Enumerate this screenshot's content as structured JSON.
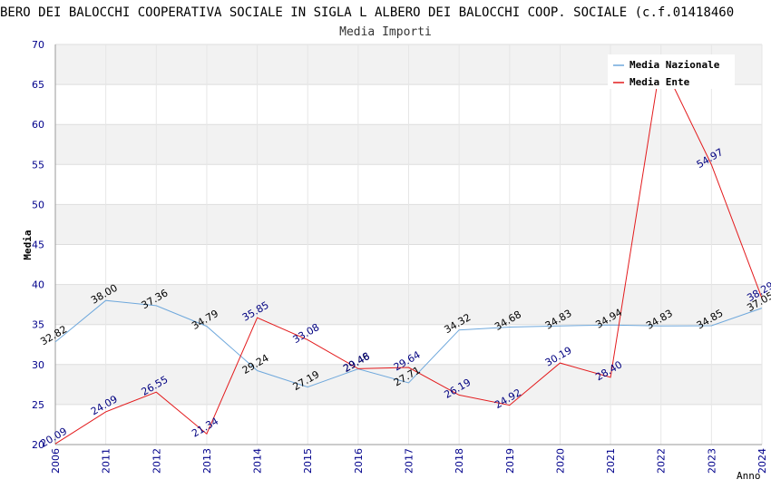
{
  "chart_data": {
    "type": "line",
    "title": "BERO DEI BALOCCHI COOPERATIVA SOCIALE IN SIGLA L ALBERO DEI BALOCCHI COOP. SOCIALE (c.f.01418460",
    "subtitle": "Media Importi",
    "xlabel": "Anno",
    "ylabel": "Media",
    "ylim": [
      20,
      70
    ],
    "yticks": [
      20,
      25,
      30,
      35,
      40,
      45,
      50,
      55,
      60,
      65,
      70
    ],
    "x": [
      "2006",
      "2011",
      "2012",
      "2013",
      "2014",
      "2015",
      "2016",
      "2017",
      "2018",
      "2019",
      "2020",
      "2021",
      "2022",
      "2023",
      "2024"
    ],
    "series": [
      {
        "name": "Media Nazionale",
        "color": "#6fa8dc",
        "values": [
          32.82,
          38.0,
          37.36,
          34.79,
          29.24,
          27.19,
          29.46,
          27.71,
          34.32,
          34.68,
          34.83,
          34.94,
          34.83,
          34.85,
          37.05
        ],
        "labels": [
          "32.82",
          "38.00",
          "37.36",
          "34.79",
          "29.24",
          "27.19",
          "29.46",
          "27.71",
          "34.32",
          "34.68",
          "34.83",
          "34.94",
          "34.83",
          "34.85",
          "37.05"
        ]
      },
      {
        "name": "Media Ente",
        "color": "#e31a1c",
        "values": [
          20.09,
          24.09,
          26.55,
          21.34,
          35.85,
          33.08,
          29.48,
          29.64,
          26.19,
          24.92,
          30.19,
          28.4,
          68.0,
          54.97,
          38.29
        ],
        "labels": [
          "20.09",
          "24.09",
          "26.55",
          "21.34",
          "35.85",
          "33.08",
          "29.48",
          "29.64",
          "26.19",
          "24.92",
          "30.19",
          "28.40",
          "",
          "54.97",
          "38.29"
        ]
      }
    ],
    "legend_position": "top-right"
  }
}
